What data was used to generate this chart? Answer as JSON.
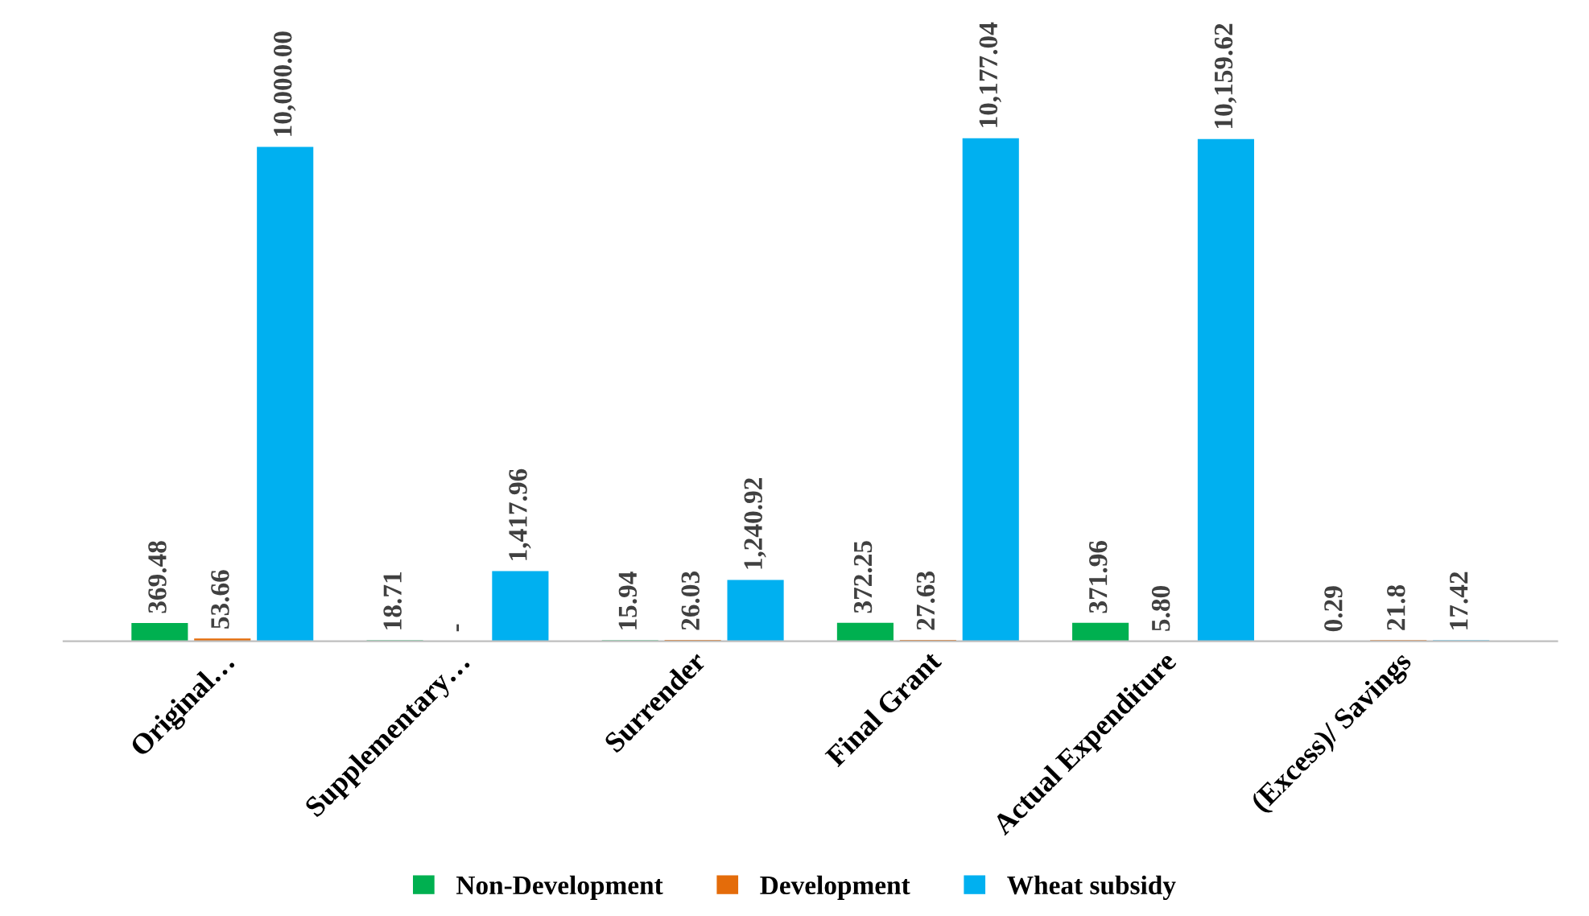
{
  "chart_data": {
    "type": "bar",
    "categories": [
      "Original…",
      "Supplementary…",
      "Surrender",
      "Final Grant",
      "Actual Expenditure",
      "(Excess)/ Savings"
    ],
    "series": [
      {
        "name": "Non-Development",
        "color": "#00b050",
        "values": [
          369.48,
          18.71,
          15.94,
          372.25,
          371.96,
          0.29
        ],
        "value_labels": [
          "369.48",
          "18.71",
          "15.94",
          "372.25",
          "371.96",
          "0.29"
        ]
      },
      {
        "name": "Development",
        "color": "#e46c0a",
        "values": [
          53.66,
          null,
          26.03,
          27.63,
          5.8,
          21.8
        ],
        "value_labels": [
          "53.66",
          "-",
          "26.03",
          "27.63",
          "5.80",
          "21.8"
        ]
      },
      {
        "name": "Wheat subsidy",
        "color": "#00b0f0",
        "values": [
          10000.0,
          1417.96,
          1240.92,
          10177.04,
          10159.62,
          17.42
        ],
        "value_labels": [
          "10,000.00",
          "1,417.96",
          "1,240.92",
          "10,177.04",
          "10,159.62",
          "17.42"
        ]
      }
    ],
    "legend": "bottom",
    "grid": false,
    "tick_labels": "x"
  }
}
